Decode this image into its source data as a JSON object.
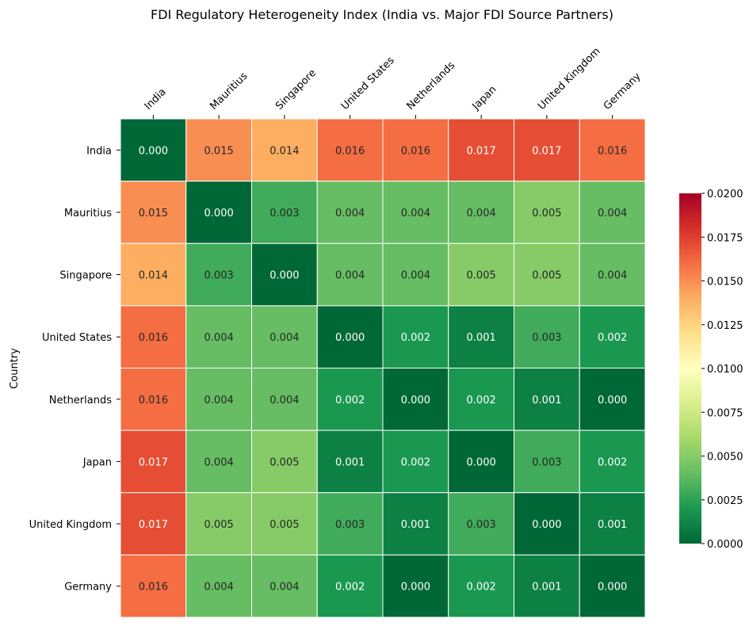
{
  "chart_data": {
    "type": "heatmap",
    "title": "FDI Regulatory Heterogeneity Index (India vs. Major FDI Source Partners)",
    "xlabel": "",
    "ylabel": "Country",
    "x_categories": [
      "India",
      "Mauritius",
      "Singapore",
      "United States",
      "Netherlands",
      "Japan",
      "United Kingdom",
      "Germany"
    ],
    "y_categories": [
      "India",
      "Mauritius",
      "Singapore",
      "United States",
      "Netherlands",
      "Japan",
      "United Kingdom",
      "Germany"
    ],
    "values": [
      [
        0.0,
        0.015,
        0.014,
        0.016,
        0.016,
        0.017,
        0.017,
        0.016
      ],
      [
        0.015,
        0.0,
        0.003,
        0.004,
        0.004,
        0.004,
        0.005,
        0.004
      ],
      [
        0.014,
        0.003,
        0.0,
        0.004,
        0.004,
        0.005,
        0.005,
        0.004
      ],
      [
        0.016,
        0.004,
        0.004,
        0.0,
        0.002,
        0.001,
        0.003,
        0.002
      ],
      [
        0.016,
        0.004,
        0.004,
        0.002,
        0.0,
        0.002,
        0.001,
        0.0
      ],
      [
        0.017,
        0.004,
        0.005,
        0.001,
        0.002,
        0.0,
        0.003,
        0.002
      ],
      [
        0.017,
        0.005,
        0.005,
        0.003,
        0.001,
        0.003,
        0.0,
        0.001
      ],
      [
        0.016,
        0.004,
        0.004,
        0.002,
        0.0,
        0.002,
        0.001,
        0.0
      ]
    ],
    "value_format_decimals": 3,
    "x_tick_position": "top",
    "x_tick_rotation_deg": -45,
    "colorscale": "RdYlGn_r",
    "vmin": 0.0,
    "vmax": 0.02,
    "colorbar": {
      "placement": "right",
      "ticks": [
        "0.0000",
        "0.0025",
        "0.0050",
        "0.0075",
        "0.0100",
        "0.0125",
        "0.0150",
        "0.0175",
        "0.0200"
      ]
    },
    "grid": false
  }
}
